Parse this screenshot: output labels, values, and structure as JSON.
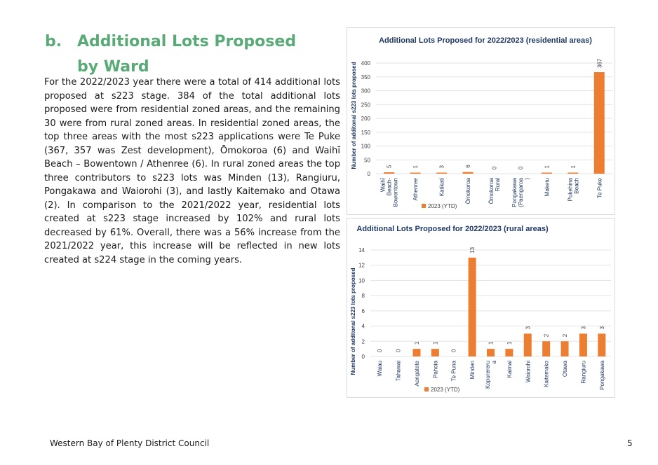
{
  "section": {
    "number": "b.",
    "title_line1": "Additional Lots Proposed",
    "title_line2": "by Ward",
    "paragraph": "For the 2022/2023 year there were a total of 414 additional lots proposed at s223 stage. 384 of the total additional lots proposed were from residential zoned areas, and the remaining 30 were from rural zoned areas. In residential zoned areas, the top three areas with the most s223 applications were Te Puke (367, 357 was Zest development), Ōmokoroa (6) and Waihī Beach – Bowentown / Athenree (6). In rural zoned areas the top three contributors to s223 lots was Minden (13), Rangiuru, Pongakawa and Waiorohi (3), and lastly Kaitemako and Otawa (2). In comparison to the 2021/2022 year, residential lots created at s223 stage increased by 102% and rural lots decreased by 61%. Overall, there was a 56% increase from the 2021/2022 year, this increase will be reflected in new lots created at s224 stage in the coming years."
  },
  "footer": {
    "org": "Western Bay of Plenty District Council",
    "page": "5"
  },
  "colors": {
    "bar": "#ed7d31",
    "heading": "#5aaa77",
    "chart_title": "#1f3864",
    "axis_label": "#1f3864"
  },
  "chart_data": [
    {
      "type": "bar",
      "title": "Additional Lots Proposed for 2022/2023 (residential areas)",
      "ylabel": "Number of additonal s223 lots proposed",
      "xlabel": "",
      "categories": [
        [
          "Waihī",
          "Beach-",
          "Bowentown"
        ],
        [
          "Athenree"
        ],
        [
          "Katikati"
        ],
        [
          "Ōmokoroa"
        ],
        [
          "Ōmokoroa",
          "Rural"
        ],
        [
          "Pongakawa",
          "(Paengaroa",
          ")"
        ],
        [
          "Maketu"
        ],
        [
          "Pukehina",
          "Beach"
        ],
        [
          "Te Puke"
        ]
      ],
      "series": [
        {
          "name": "2023 (YTD)",
          "values": [
            5,
            1,
            3,
            6,
            0,
            0,
            1,
            1,
            367
          ]
        }
      ],
      "ylim": [
        0,
        400
      ],
      "yticks": [
        0,
        50,
        100,
        150,
        200,
        250,
        300,
        350,
        400
      ],
      "grid": true,
      "legend": "bottom"
    },
    {
      "type": "bar",
      "title": "Additional Lots Proposed for 2022/2023 (rural areas)",
      "ylabel": "Number of additonal s223 lots proposed",
      "xlabel": "",
      "categories": [
        [
          "Waiau"
        ],
        [
          "Tahawai"
        ],
        [
          "Aongatete"
        ],
        [
          "Pahoia"
        ],
        [
          "Te Puna"
        ],
        [
          "Minden"
        ],
        [
          "Kopurereru",
          "a"
        ],
        [
          "Kaimai"
        ],
        [
          "Waiorohi"
        ],
        [
          "Kaitemako"
        ],
        [
          "Otawa"
        ],
        [
          "Rangiuru"
        ],
        [
          "Pongakawa"
        ]
      ],
      "series": [
        {
          "name": "2023 (YTD)",
          "values": [
            0,
            0,
            1,
            1,
            0,
            13,
            1,
            1,
            3,
            2,
            2,
            3,
            3
          ]
        }
      ],
      "ylim": [
        0,
        14
      ],
      "yticks": [
        0,
        2,
        4,
        6,
        8,
        10,
        12,
        14
      ],
      "grid": true,
      "legend": "bottom"
    }
  ]
}
